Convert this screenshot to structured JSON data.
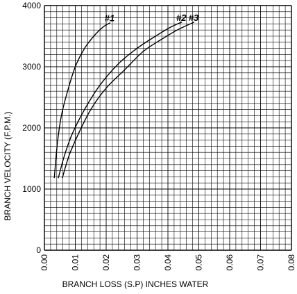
{
  "chart_data": {
    "type": "line",
    "xlabel": "BRANCH LOSS (S.P) INCHES WATER",
    "ylabel": "BRANCH VELOCITY (F.P.M.)",
    "xlim": [
      0,
      0.08
    ],
    "ylim": [
      0,
      4000
    ],
    "x_ticks": [
      "0.00",
      "0.01",
      "0.02",
      "0.03",
      "0.04",
      "0.05",
      "0.06",
      "0.07",
      "0.08"
    ],
    "y_ticks": [
      "0",
      "1000",
      "2000",
      "3000",
      "4000"
    ],
    "grid": true,
    "series": [
      {
        "name": "#1",
        "x": [
          0.0032,
          0.0042,
          0.0055,
          0.0075,
          0.01,
          0.013,
          0.016,
          0.019,
          0.0213
        ],
        "y": [
          1180,
          1750,
          2200,
          2600,
          3000,
          3300,
          3500,
          3650,
          3720
        ]
      },
      {
        "name": "#2",
        "x": [
          0.0045,
          0.0065,
          0.009,
          0.013,
          0.018,
          0.024,
          0.03,
          0.036,
          0.041,
          0.0445
        ],
        "y": [
          1180,
          1550,
          1900,
          2300,
          2700,
          3050,
          3300,
          3500,
          3650,
          3730
        ]
      },
      {
        "name": "#3",
        "x": [
          0.0058,
          0.008,
          0.011,
          0.015,
          0.02,
          0.026,
          0.032,
          0.038,
          0.043,
          0.0485
        ],
        "y": [
          1180,
          1550,
          1900,
          2300,
          2650,
          2950,
          3250,
          3450,
          3600,
          3730
        ]
      }
    ]
  }
}
